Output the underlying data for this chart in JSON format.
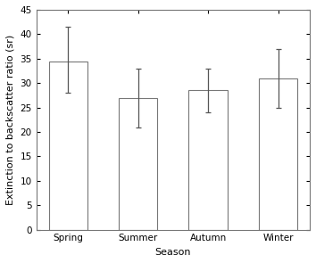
{
  "categories": [
    "Spring",
    "Summer",
    "Autumn",
    "Winter"
  ],
  "values": [
    34.5,
    27.0,
    28.5,
    31.0
  ],
  "errors_lower": [
    6.5,
    6.0,
    4.5,
    6.0
  ],
  "errors_upper": [
    7.0,
    6.0,
    4.5,
    6.0
  ],
  "bar_color": "#ffffff",
  "bar_edge_color": "#777777",
  "error_color": "#555555",
  "xlabel": "Season",
  "ylabel": "Extinction to backscatter ratio (sr)",
  "ylim": [
    0,
    45
  ],
  "yticks": [
    0,
    5,
    10,
    15,
    20,
    25,
    30,
    35,
    40,
    45
  ],
  "bar_width": 0.55,
  "figsize": [
    3.54,
    2.95
  ],
  "dpi": 100,
  "spine_color": "#777777",
  "background_color": "#ffffff",
  "tick_fontsize": 7.5,
  "label_fontsize": 8
}
